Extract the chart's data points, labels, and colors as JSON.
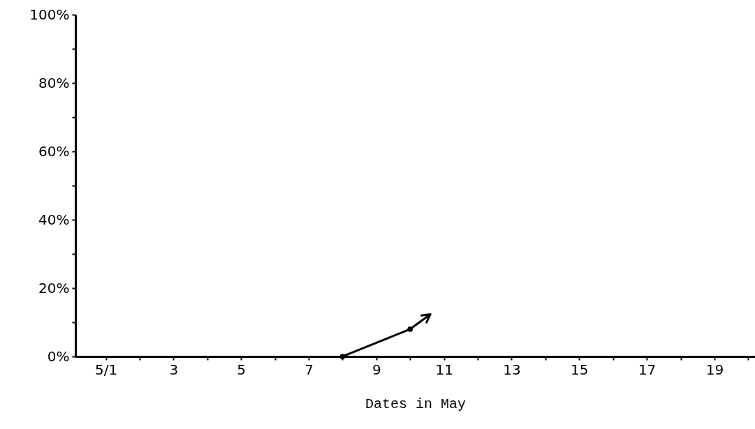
{
  "chart_data": {
    "type": "line",
    "xlabel": "Dates in May",
    "x": [
      8,
      10
    ],
    "series": [
      {
        "color": "#000000",
        "values": [
          0,
          8
        ]
      }
    ],
    "xlim": [
      0.1,
      20.2
    ],
    "xticks": [
      {
        "value": 1,
        "label": "5/1"
      },
      {
        "value": 2,
        "label": null
      },
      3,
      {
        "value": 4,
        "label": null
      },
      5,
      {
        "value": 6,
        "label": null
      },
      7,
      {
        "value": 8,
        "label": null
      },
      9,
      {
        "value": 10,
        "label": null
      },
      11,
      {
        "value": 12,
        "label": null
      },
      13,
      {
        "value": 14,
        "label": null
      },
      15,
      {
        "value": 16,
        "label": null
      },
      17,
      {
        "value": 18,
        "label": null
      },
      19,
      {
        "value": 20,
        "label": null
      }
    ],
    "ylim": [
      0,
      100
    ],
    "yticks": [
      {
        "value": 0,
        "label": "0%"
      },
      {
        "value": 10,
        "label": null
      },
      {
        "value": 20,
        "label": "20%"
      },
      {
        "value": 30,
        "label": null
      },
      {
        "value": 40,
        "label": "40%"
      },
      {
        "value": 50,
        "label": null
      },
      {
        "value": 60,
        "label": "60%"
      },
      {
        "value": 70,
        "label": null
      },
      {
        "value": 80,
        "label": "80%"
      },
      {
        "value": 90,
        "label": null
      },
      {
        "value": 100,
        "label": "100%"
      }
    ],
    "grid": false,
    "legend": false,
    "marker": "circle",
    "line_style": "solid"
  }
}
